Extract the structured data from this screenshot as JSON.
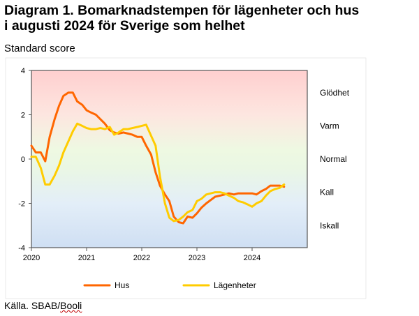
{
  "header": {
    "title_line1": "Diagram 1. Bomarknadstempen för lägenheter och hus",
    "title_line2": "i augusti 2024 för Sverige som helhet",
    "subtitle": "Standard score"
  },
  "source": {
    "prefix": "Källa. SBAB/",
    "underlined": "Booli"
  },
  "chart_data": {
    "type": "line",
    "title": "Diagram 1. Bomarknadstempen för lägenheter och hus i augusti 2024 för Sverige som helhet",
    "ylabel": "Standard score",
    "xlabel": "",
    "xlim": [
      2020.0,
      2025.0
    ],
    "ylim": [
      -4,
      4
    ],
    "yticks": [
      4,
      2,
      0,
      -2,
      -4
    ],
    "xticks": [
      "2020",
      "2021",
      "2022",
      "2023",
      "2024"
    ],
    "xtick_values": [
      2020,
      2021,
      2022,
      2023,
      2024
    ],
    "grid": false,
    "background": "vertical gradient red (top) to green (middle) to blue (bottom)",
    "zones": [
      "Glödhet",
      "Varm",
      "Normal",
      "Kall",
      "Iskall"
    ],
    "zone_values": [
      3.0,
      1.5,
      0.0,
      -1.5,
      -3.0
    ],
    "legend_position": "bottom",
    "series": [
      {
        "name": "Hus",
        "color": "#ff6600",
        "x": [
          2020.0,
          2020.08,
          2020.17,
          2020.25,
          2020.33,
          2020.42,
          2020.5,
          2020.58,
          2020.67,
          2020.75,
          2020.83,
          2020.92,
          2021.0,
          2021.08,
          2021.17,
          2021.25,
          2021.33,
          2021.42,
          2021.5,
          2021.58,
          2021.67,
          2021.75,
          2021.83,
          2021.92,
          2022.0,
          2022.08,
          2022.17,
          2022.25,
          2022.33,
          2022.42,
          2022.5,
          2022.58,
          2022.67,
          2022.75,
          2022.83,
          2022.92,
          2023.0,
          2023.08,
          2023.17,
          2023.25,
          2023.33,
          2023.42,
          2023.5,
          2023.58,
          2023.67,
          2023.75,
          2023.83,
          2023.92,
          2024.0,
          2024.08,
          2024.17,
          2024.25,
          2024.33,
          2024.42,
          2024.5,
          2024.58
        ],
        "values": [
          0.6,
          0.3,
          0.3,
          -0.1,
          1.0,
          1.8,
          2.4,
          2.85,
          3.0,
          3.0,
          2.6,
          2.45,
          2.2,
          2.1,
          2.0,
          1.8,
          1.6,
          1.3,
          1.2,
          1.15,
          1.2,
          1.15,
          1.1,
          1.0,
          1.0,
          0.6,
          0.2,
          -0.6,
          -1.2,
          -1.6,
          -1.9,
          -2.6,
          -2.85,
          -2.9,
          -2.6,
          -2.65,
          -2.45,
          -2.2,
          -2.0,
          -1.85,
          -1.7,
          -1.65,
          -1.6,
          -1.55,
          -1.6,
          -1.55,
          -1.55,
          -1.55,
          -1.55,
          -1.6,
          -1.45,
          -1.35,
          -1.2,
          -1.2,
          -1.2,
          -1.25
        ]
      },
      {
        "name": "Lägenheter",
        "color": "#ffcc00",
        "x": [
          2020.0,
          2020.08,
          2020.17,
          2020.25,
          2020.33,
          2020.42,
          2020.5,
          2020.58,
          2020.67,
          2020.75,
          2020.83,
          2020.92,
          2021.0,
          2021.08,
          2021.17,
          2021.25,
          2021.33,
          2021.42,
          2021.5,
          2021.58,
          2021.67,
          2021.75,
          2021.83,
          2021.92,
          2022.0,
          2022.08,
          2022.17,
          2022.25,
          2022.33,
          2022.42,
          2022.5,
          2022.58,
          2022.67,
          2022.75,
          2022.83,
          2022.92,
          2023.0,
          2023.08,
          2023.17,
          2023.25,
          2023.33,
          2023.42,
          2023.5,
          2023.58,
          2023.67,
          2023.75,
          2023.83,
          2023.92,
          2024.0,
          2024.08,
          2024.17,
          2024.25,
          2024.33,
          2024.42,
          2024.5,
          2024.58
        ],
        "values": [
          0.1,
          0.1,
          -0.4,
          -1.15,
          -1.15,
          -0.75,
          -0.3,
          0.3,
          0.8,
          1.25,
          1.6,
          1.5,
          1.4,
          1.35,
          1.35,
          1.4,
          1.35,
          1.45,
          1.1,
          1.2,
          1.35,
          1.35,
          1.4,
          1.45,
          1.5,
          1.55,
          1.05,
          0.6,
          -0.8,
          -2.0,
          -2.65,
          -2.8,
          -2.75,
          -2.6,
          -2.4,
          -2.3,
          -1.9,
          -1.8,
          -1.6,
          -1.55,
          -1.5,
          -1.5,
          -1.55,
          -1.65,
          -1.75,
          -1.9,
          -1.95,
          -2.05,
          -2.15,
          -2.0,
          -1.9,
          -1.65,
          -1.45,
          -1.35,
          -1.3,
          -1.15
        ]
      }
    ]
  }
}
